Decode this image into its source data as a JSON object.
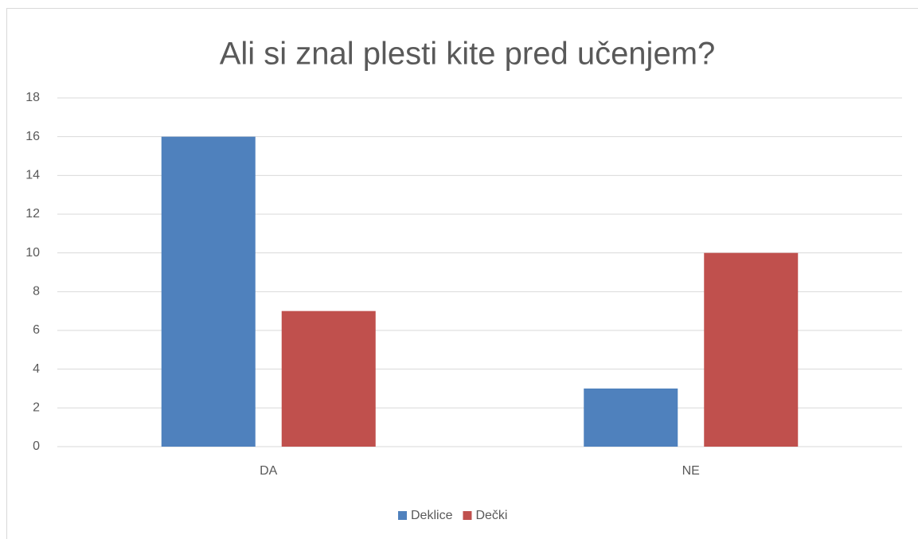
{
  "chart_data": {
    "type": "bar",
    "title": "Ali si znal plesti kite pred učenjem?",
    "categories": [
      "DA",
      "NE"
    ],
    "series": [
      {
        "name": "Deklice",
        "color": "#4f81bd",
        "values": [
          16,
          3
        ]
      },
      {
        "name": "Dečki",
        "color": "#c0504d",
        "values": [
          7,
          10
        ]
      }
    ],
    "ylim": [
      0,
      18
    ],
    "yticks": [
      0,
      2,
      4,
      6,
      8,
      10,
      12,
      14,
      16,
      18
    ],
    "grid": true,
    "legend": "bottom"
  }
}
